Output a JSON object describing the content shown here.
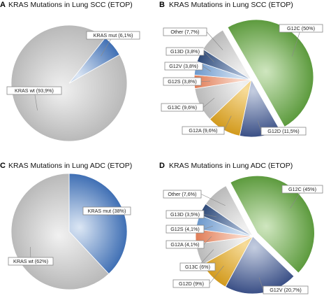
{
  "colors": {
    "grey_light": "#f1f1f1",
    "grey_dark": "#b9b9b9",
    "blue_light": "#dbe6f4",
    "blue_dark": "#3f6fb4",
    "green_light": "#cfe6bf",
    "green_dark": "#5c9a3d",
    "navy_light": "#c4cde0",
    "navy_dark": "#3a4f86",
    "gold_light": "#f7dc9a",
    "gold_dark": "#d29a1d",
    "steel_dark": "#2f4a78",
    "steel_light": "#a9bbd6",
    "lightblue_dark": "#6c98cc",
    "lightblue_light": "#d5e3f3",
    "salmon_dark": "#e07c56",
    "salmon_light": "#f9d8c9",
    "slate_dark": "#6c778a",
    "slate_light": "#d7dbe2"
  },
  "chart_data": [
    {
      "type": "pie",
      "panel": "A",
      "title": "KRAS Mutations in Lung SCC (ETOP)",
      "slices": [
        {
          "label": "KRAS wt (93,9%)",
          "value": 93.9,
          "color": "grey"
        },
        {
          "label": "KRAS mut (6,1%)",
          "value": 6.1,
          "color": "blue"
        }
      ]
    },
    {
      "type": "pie",
      "panel": "B",
      "title": "KRAS Mutations in Lung SCC (ETOP)",
      "slices": [
        {
          "label": "G12C (50%)",
          "value": 50,
          "color": "green"
        },
        {
          "label": "G12D (11,5%)",
          "value": 11.5,
          "color": "navy"
        },
        {
          "label": "G12A (9,6%)",
          "value": 9.6,
          "color": "gold"
        },
        {
          "label": "G13C (9,6%)",
          "value": 9.6,
          "color": "grey"
        },
        {
          "label": "G12S (3,8%)",
          "value": 3.8,
          "color": "salmon"
        },
        {
          "label": "G12V (3,8%)",
          "value": 3.8,
          "color": "lightblue"
        },
        {
          "label": "G13D (3,8%)",
          "value": 3.8,
          "color": "steel"
        },
        {
          "label": "Other (7,7%)",
          "value": 7.7,
          "color": "grey"
        }
      ]
    },
    {
      "type": "pie",
      "panel": "C",
      "title": "KRAS Mutations in Lung ADC (ETOP)",
      "slices": [
        {
          "label": "KRAS mut (38%)",
          "value": 38,
          "color": "blue"
        },
        {
          "label": "KRAS wt (62%)",
          "value": 62,
          "color": "grey"
        }
      ]
    },
    {
      "type": "pie",
      "panel": "D",
      "title": "KRAS Mutations in Lung ADC (ETOP)",
      "slices": [
        {
          "label": "G12C (45%)",
          "value": 45,
          "color": "green"
        },
        {
          "label": "G12V (20,7%)",
          "value": 20.7,
          "color": "navy"
        },
        {
          "label": "G12D (9%)",
          "value": 9,
          "color": "gold"
        },
        {
          "label": "G13C (6%)",
          "value": 6,
          "color": "grey"
        },
        {
          "label": "G12A (4,1%)",
          "value": 4.1,
          "color": "salmon"
        },
        {
          "label": "G12S (4,1%)",
          "value": 4.1,
          "color": "lightblue"
        },
        {
          "label": "G13D (3,5%)",
          "value": 3.5,
          "color": "steel"
        },
        {
          "label": "Other (7,6%)",
          "value": 7.6,
          "color": "grey"
        }
      ]
    }
  ]
}
